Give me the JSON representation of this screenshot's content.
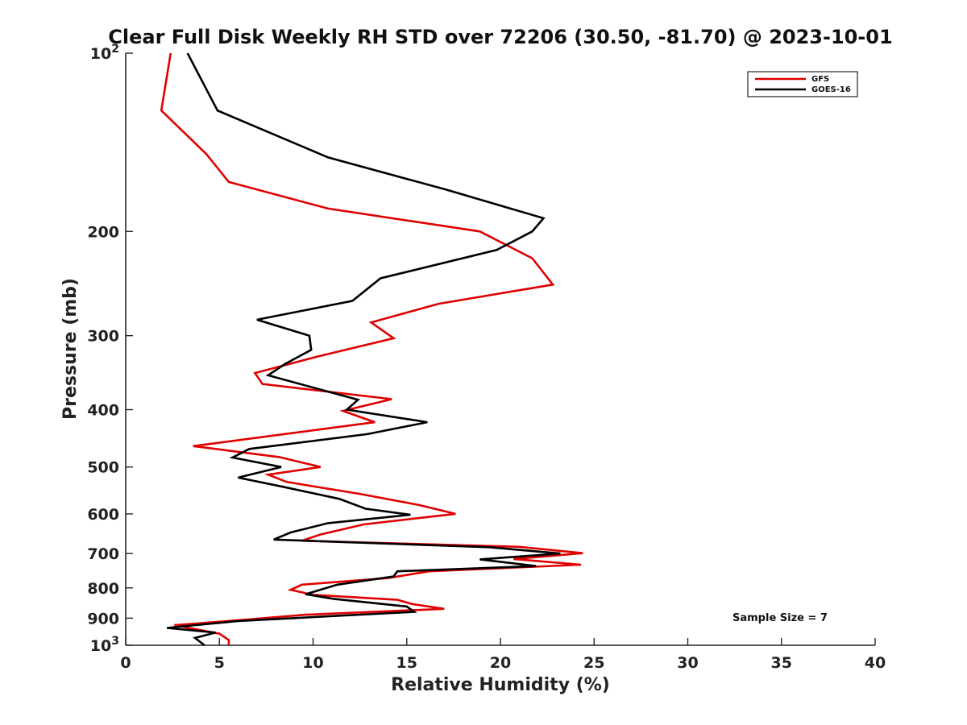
{
  "chart_data": {
    "type": "line",
    "title": "Clear Full Disk Weekly RH STD over 72206 (30.50, -81.70) @ 2023-10-01",
    "xlabel": "Relative Humidity (%)",
    "ylabel": "Pressure (mb)",
    "xlim": [
      0,
      40
    ],
    "ylim": [
      100,
      1000
    ],
    "yscale": "log",
    "y_reversed": true,
    "grid": false,
    "legend_position": "top-right",
    "x_ticks": [
      0,
      5,
      10,
      15,
      20,
      25,
      30,
      35,
      40
    ],
    "x_tick_labels": [
      "0",
      "5",
      "10",
      "15",
      "20",
      "25",
      "30",
      "35",
      "40"
    ],
    "y_ticks": [
      {
        "value": 100,
        "base": "10",
        "exp": "2"
      },
      {
        "value": 200,
        "label": "200"
      },
      {
        "value": 300,
        "label": "300"
      },
      {
        "value": 400,
        "label": "400"
      },
      {
        "value": 500,
        "label": "500"
      },
      {
        "value": 600,
        "label": "600"
      },
      {
        "value": 700,
        "label": "700"
      },
      {
        "value": 800,
        "label": "800"
      },
      {
        "value": 900,
        "label": "900"
      },
      {
        "value": 1000,
        "base": "10",
        "exp": "3"
      }
    ],
    "annotation": "Sample Size = 7",
    "series": [
      {
        "name": "GFS",
        "color": "#e00000",
        "points": [
          [
            2.4,
            100
          ],
          [
            1.9,
            125
          ],
          [
            4.3,
            148
          ],
          [
            5.5,
            165
          ],
          [
            10.8,
            183
          ],
          [
            18.9,
            200
          ],
          [
            21.7,
            222
          ],
          [
            22.8,
            246
          ],
          [
            16.7,
            265
          ],
          [
            13.1,
            285
          ],
          [
            14.3,
            303
          ],
          [
            10.3,
            325
          ],
          [
            6.9,
            347
          ],
          [
            7.3,
            362
          ],
          [
            14.2,
            384
          ],
          [
            11.6,
            402
          ],
          [
            13.3,
            420
          ],
          [
            3.6,
            461
          ],
          [
            8.2,
            481
          ],
          [
            10.4,
            500
          ],
          [
            7.6,
            515
          ],
          [
            8.6,
            530
          ],
          [
            12.5,
            555
          ],
          [
            15.7,
            580
          ],
          [
            17.6,
            600
          ],
          [
            12.7,
            625
          ],
          [
            10.4,
            650
          ],
          [
            9.4,
            666
          ],
          [
            21.0,
            682
          ],
          [
            24.4,
            699
          ],
          [
            20.7,
            715
          ],
          [
            24.3,
            731
          ],
          [
            16.2,
            750
          ],
          [
            14.0,
            770
          ],
          [
            9.4,
            790
          ],
          [
            8.8,
            806
          ],
          [
            10.0,
            822
          ],
          [
            14.5,
            838
          ],
          [
            15.3,
            852
          ],
          [
            17.0,
            868
          ],
          [
            9.6,
            888
          ],
          [
            6.5,
            905
          ],
          [
            2.6,
            925
          ],
          [
            5.0,
            956
          ],
          [
            5.5,
            980
          ],
          [
            5.5,
            1000
          ]
        ]
      },
      {
        "name": "GOES-16",
        "color": "#000000",
        "points": [
          [
            3.3,
            100
          ],
          [
            4.9,
            125
          ],
          [
            10.8,
            150
          ],
          [
            17.1,
            170
          ],
          [
            22.3,
            190
          ],
          [
            21.7,
            200
          ],
          [
            19.8,
            215
          ],
          [
            13.6,
            240
          ],
          [
            12.1,
            262
          ],
          [
            7.0,
            282
          ],
          [
            9.8,
            300
          ],
          [
            9.9,
            317
          ],
          [
            8.5,
            335
          ],
          [
            7.6,
            350
          ],
          [
            12.4,
            385
          ],
          [
            11.8,
            400
          ],
          [
            16.1,
            420
          ],
          [
            12.9,
            440
          ],
          [
            6.6,
            466
          ],
          [
            5.7,
            482
          ],
          [
            8.3,
            500
          ],
          [
            6.0,
            521
          ],
          [
            8.4,
            540
          ],
          [
            11.4,
            566
          ],
          [
            12.8,
            588
          ],
          [
            15.2,
            602
          ],
          [
            10.8,
            622
          ],
          [
            8.8,
            645
          ],
          [
            7.9,
            663
          ],
          [
            19.4,
            683
          ],
          [
            23.2,
            700
          ],
          [
            18.9,
            716
          ],
          [
            21.9,
            735
          ],
          [
            14.5,
            750
          ],
          [
            14.3,
            765
          ],
          [
            11.3,
            790
          ],
          [
            9.6,
            820
          ],
          [
            11.1,
            835
          ],
          [
            15.0,
            860
          ],
          [
            15.4,
            878
          ],
          [
            6.0,
            910
          ],
          [
            2.2,
            935
          ],
          [
            4.8,
            952
          ],
          [
            3.7,
            972
          ],
          [
            4.2,
            1000
          ]
        ]
      }
    ]
  }
}
